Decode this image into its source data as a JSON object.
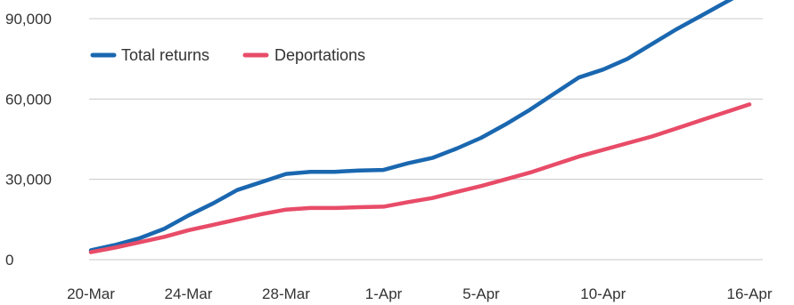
{
  "chart_data": {
    "type": "line",
    "title": "",
    "xlabel": "",
    "ylabel": "",
    "x": [
      "20-Mar",
      "21-Mar",
      "22-Mar",
      "23-Mar",
      "24-Mar",
      "25-Mar",
      "26-Mar",
      "27-Mar",
      "28-Mar",
      "29-Mar",
      "30-Mar",
      "31-Mar",
      "1-Apr",
      "2-Apr",
      "3-Apr",
      "4-Apr",
      "5-Apr",
      "6-Apr",
      "7-Apr",
      "8-Apr",
      "9-Apr",
      "10-Apr",
      "11-Apr",
      "12-Apr",
      "13-Apr",
      "14-Apr",
      "15-Apr",
      "16-Apr"
    ],
    "x_tick_labels": [
      "20-Mar",
      "24-Mar",
      "28-Mar",
      "1-Apr",
      "5-Apr",
      "10-Apr",
      "16-Apr"
    ],
    "y_ticks": [
      0,
      30000,
      60000,
      90000
    ],
    "y_tick_labels": [
      "0",
      "30,000",
      "60,000",
      "90,000"
    ],
    "ylim": [
      0,
      90000
    ],
    "grid": true,
    "legend_position": "top-left",
    "series": [
      {
        "name": "Total returns",
        "color": "#1a67b0",
        "values": [
          3500,
          5500,
          8000,
          11500,
          16500,
          21000,
          26000,
          29000,
          32000,
          32800,
          32800,
          33300,
          33500,
          36000,
          38000,
          41500,
          45500,
          50500,
          56000,
          62000,
          68000,
          71000,
          75000,
          80500,
          86000,
          91000,
          96000,
          101000
        ]
      },
      {
        "name": "Deportations",
        "color": "#e84c68",
        "values": [
          2800,
          4500,
          6500,
          8500,
          11000,
          13000,
          15000,
          17000,
          18700,
          19300,
          19300,
          19600,
          19800,
          21500,
          23000,
          25300,
          27500,
          30000,
          32500,
          35500,
          38500,
          41000,
          43500,
          46000,
          49000,
          52000,
          55000,
          58000
        ]
      }
    ]
  }
}
